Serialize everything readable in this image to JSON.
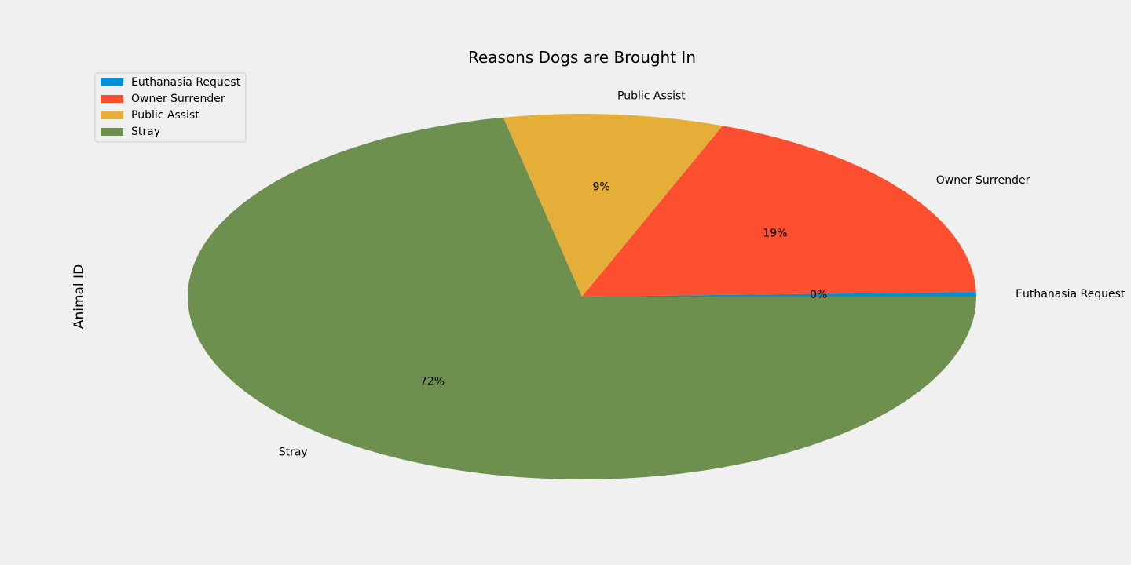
{
  "chart_data": {
    "type": "pie",
    "title": "Reasons Dogs are Brought In",
    "ylabel": "Animal ID",
    "categories": [
      "Euthanasia Request",
      "Owner Surrender",
      "Public Assist",
      "Stray"
    ],
    "values": [
      0.4,
      18.8,
      9.0,
      71.8
    ],
    "percent_labels": [
      "0%",
      "19%",
      "9%",
      "72%"
    ],
    "colors": [
      "#008fd5",
      "#fc4f30",
      "#e5ae38",
      "#6d904f"
    ],
    "legend": {
      "placement": "upper-left",
      "entries": [
        "Euthanasia Request",
        "Owner Surrender",
        "Public Assist",
        "Stray"
      ]
    },
    "start_angle_deg": 0,
    "direction": "counterclockwise"
  }
}
